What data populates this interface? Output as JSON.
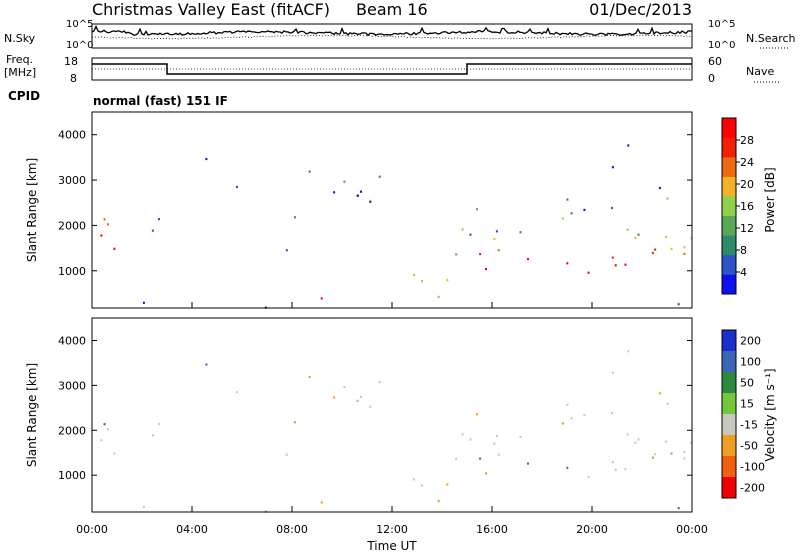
{
  "header": {
    "title": "Christmas Valley East (fitACF)",
    "beam": "Beam 16",
    "date": "01/Dec/2013"
  },
  "noise_panel": {
    "left_label": "N.Sky",
    "right_label": "N.Search",
    "ticks_left": [
      "10^5",
      "10^0"
    ],
    "ticks_right": [
      "10^5",
      "10^0"
    ]
  },
  "freq_panel": {
    "left_label_1": "Freq.",
    "left_label_2": "[MHz]",
    "right_label": "Nave",
    "ticks_left": [
      "18",
      "8"
    ],
    "ticks_right": [
      "60",
      "0"
    ]
  },
  "cpid": {
    "label": "CPID",
    "value": "normal (fast) 151 IF"
  },
  "chart_data": [
    {
      "type": "heatmap",
      "name": "power",
      "ylabel": "Slant Range [km]",
      "ylim": [
        180,
        4500
      ],
      "yticks": [
        "1000",
        "2000",
        "3000",
        "4000"
      ],
      "colorbar_label": "Power [dB]",
      "colorbar_ticks": [
        "4",
        "8",
        "12",
        "16",
        "20",
        "24",
        "28"
      ],
      "colorbar_range": [
        0,
        32
      ],
      "colors": [
        "#1010ee",
        "#2c54c8",
        "#2d8a6a",
        "#58a858",
        "#8ed24c",
        "#f2b22a",
        "#ee6a10",
        "#f02000",
        "#ff0000"
      ]
    },
    {
      "type": "heatmap",
      "name": "velocity",
      "ylabel": "Slant Range [km]",
      "ylim": [
        180,
        4500
      ],
      "yticks": [
        "1000",
        "2000",
        "3000",
        "4000"
      ],
      "xlabel": "Time UT",
      "xticks": [
        "00:00",
        "04:00",
        "08:00",
        "12:00",
        "16:00",
        "20:00",
        "00:00"
      ],
      "colorbar_label": "Velocity [m s⁻¹]",
      "colorbar_ticks": [
        "200",
        "100",
        "50",
        "15",
        "-15",
        "-50",
        "-100",
        "-200"
      ],
      "colors": [
        "#1a2ecc",
        "#3a66b8",
        "#2c8a3c",
        "#72c838",
        "#c8c8c0",
        "#f0a020",
        "#f06010",
        "#f00000"
      ]
    }
  ]
}
